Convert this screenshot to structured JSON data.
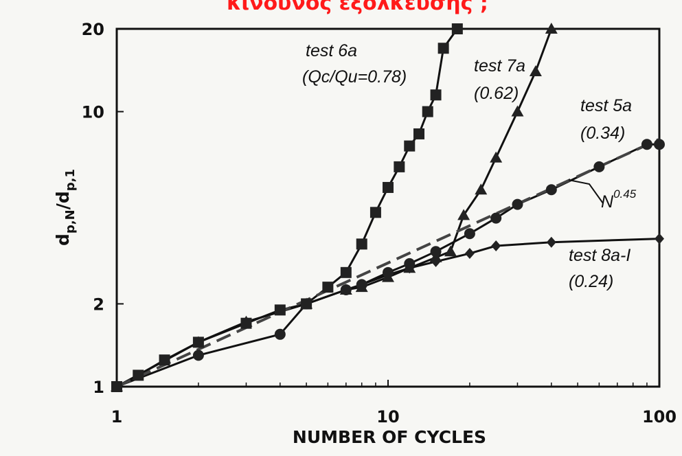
{
  "page": {
    "heading": "κίνδυνος εξόλκευσης ;"
  },
  "chart_data": {
    "type": "line",
    "xscale": "log",
    "yscale": "log",
    "xlim": [
      1,
      100
    ],
    "ylim": [
      1,
      20
    ],
    "xlabel": "NUMBER OF CYCLES",
    "ylabel": "d_p,N/d_p,1",
    "x_ticks": [
      1,
      10,
      100
    ],
    "x_tick_labels": [
      "1",
      "10",
      "100"
    ],
    "y_ticks": [
      1,
      2,
      10,
      20
    ],
    "y_tick_labels": [
      "1",
      "2",
      "10",
      "20"
    ],
    "grid": false,
    "series": [
      {
        "name": "test 6a",
        "label_lines": [
          "test 6a",
          "(Qc/Qu=0.78)"
        ],
        "marker": "square",
        "x": [
          1,
          1.2,
          1.5,
          2,
          3,
          4,
          5,
          6,
          7,
          8,
          9,
          10,
          11,
          12,
          13,
          14,
          15,
          16,
          18
        ],
        "y": [
          1,
          1.1,
          1.25,
          1.45,
          1.7,
          1.9,
          2.0,
          2.3,
          2.6,
          3.3,
          4.3,
          5.3,
          6.3,
          7.5,
          8.3,
          10,
          11.5,
          17,
          20
        ]
      },
      {
        "name": "test 7a",
        "label_lines": [
          "test 7a",
          "(0.62)"
        ],
        "marker": "triangle",
        "x": [
          1,
          2,
          3,
          5,
          7,
          8,
          10,
          12,
          15,
          17,
          19,
          22,
          25,
          30,
          35,
          40
        ],
        "y": [
          1,
          1.45,
          1.72,
          2.0,
          2.25,
          2.3,
          2.5,
          2.7,
          2.95,
          3.1,
          4.2,
          5.2,
          6.8,
          10.0,
          14.0,
          20.0
        ]
      },
      {
        "name": "test 5a",
        "label_lines": [
          "test 5a",
          "(0.34)"
        ],
        "marker": "circle",
        "x": [
          1,
          2,
          4,
          5,
          7,
          8,
          10,
          12,
          15,
          20,
          25,
          30,
          40,
          60,
          90,
          100
        ],
        "y": [
          1,
          1.3,
          1.55,
          2.0,
          2.25,
          2.35,
          2.6,
          2.8,
          3.1,
          3.6,
          4.1,
          4.6,
          5.2,
          6.3,
          7.6,
          7.6
        ]
      },
      {
        "name": "test 8a-I",
        "label_lines": [
          "test 8a-I",
          "(0.24)"
        ],
        "marker": "diamond",
        "x": [
          1,
          2,
          3,
          5,
          7,
          8,
          10,
          12,
          15,
          20,
          25,
          40,
          100
        ],
        "y": [
          1,
          1.45,
          1.72,
          2.0,
          2.25,
          2.35,
          2.55,
          2.7,
          2.85,
          3.05,
          3.25,
          3.35,
          3.45
        ]
      },
      {
        "name": "N^0.45",
        "label": "N",
        "exponent": "0.45",
        "style": "dashed",
        "x": [
          1,
          100
        ],
        "y": [
          1,
          7.94
        ]
      }
    ]
  }
}
